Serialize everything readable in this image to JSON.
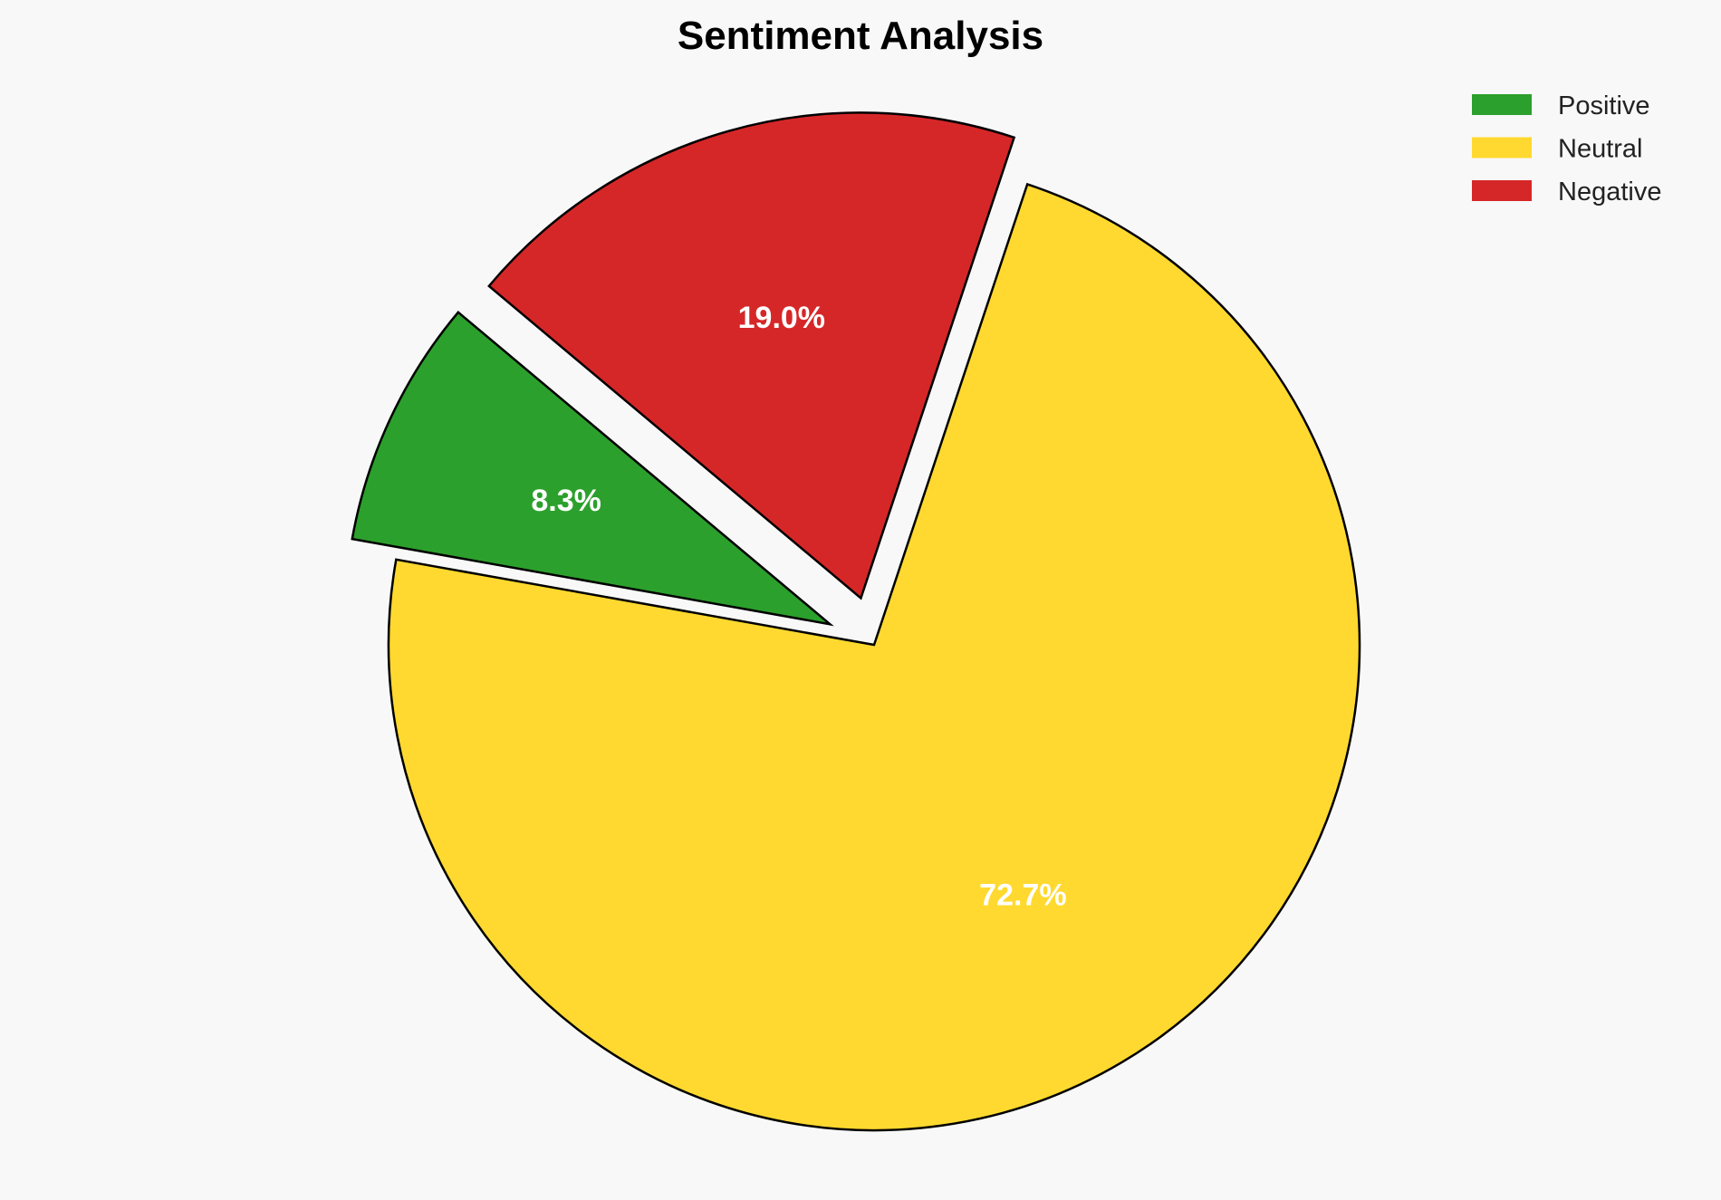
{
  "chart_data": {
    "type": "pie",
    "title": "Sentiment Analysis",
    "labels": [
      "Positive",
      "Neutral",
      "Negative"
    ],
    "values": [
      8.3,
      72.7,
      19.0
    ],
    "value_labels": [
      "8.3%",
      "72.7%",
      "19.0%"
    ],
    "colors": [
      "#2ca02c",
      "#ffd92f",
      "#d62728"
    ],
    "explode": [
      0.1,
      0,
      0.1
    ],
    "start_angle": 140,
    "edge_color": "#000000",
    "legend_placement": "top-right"
  }
}
